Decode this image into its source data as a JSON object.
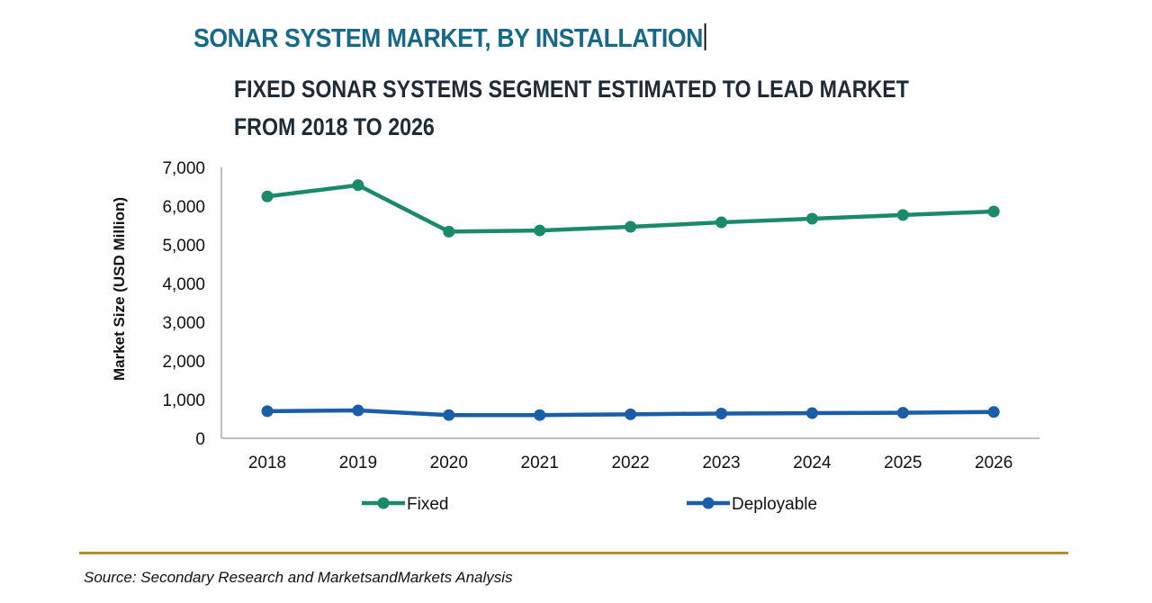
{
  "header": {
    "title": "SONAR SYSTEM MARKET, BY INSTALLATION",
    "subtitle": "FIXED SONAR SYSTEMS SEGMENT ESTIMATED TO LEAD MARKET FROM 2018 TO 2026"
  },
  "footer": {
    "source": "Source: Secondary Research and MarketsandMarkets Analysis"
  },
  "colors": {
    "title": "#17698a",
    "fixed": "#1b8a6b",
    "deployable": "#1a5ea8",
    "divider": "#b38f2e",
    "axis": "#bdbdbd"
  },
  "chart_data": {
    "type": "line",
    "title": "FIXED SONAR SYSTEMS SEGMENT ESTIMATED TO LEAD MARKET FROM 2018 TO 2026",
    "xlabel": "",
    "ylabel": "Market Size (USD Million)",
    "categories": [
      "2018",
      "2019",
      "2020",
      "2021",
      "2022",
      "2023",
      "2024",
      "2025",
      "2026"
    ],
    "ylim": [
      0,
      7000
    ],
    "yticks": [
      0,
      1000,
      2000,
      3000,
      4000,
      5000,
      6000,
      7000
    ],
    "ytick_labels": [
      "0",
      "1,000",
      "2,000",
      "3,000",
      "4,000",
      "5,000",
      "6,000",
      "7,000"
    ],
    "grid": false,
    "legend_position": "bottom",
    "series": [
      {
        "name": "Fixed",
        "color": "#1b8a6b",
        "values": [
          6250,
          6540,
          5340,
          5370,
          5465,
          5580,
          5675,
          5770,
          5860
        ]
      },
      {
        "name": "Deployable",
        "color": "#1a5ea8",
        "values": [
          700,
          720,
          600,
          600,
          620,
          640,
          650,
          660,
          680
        ]
      }
    ]
  }
}
